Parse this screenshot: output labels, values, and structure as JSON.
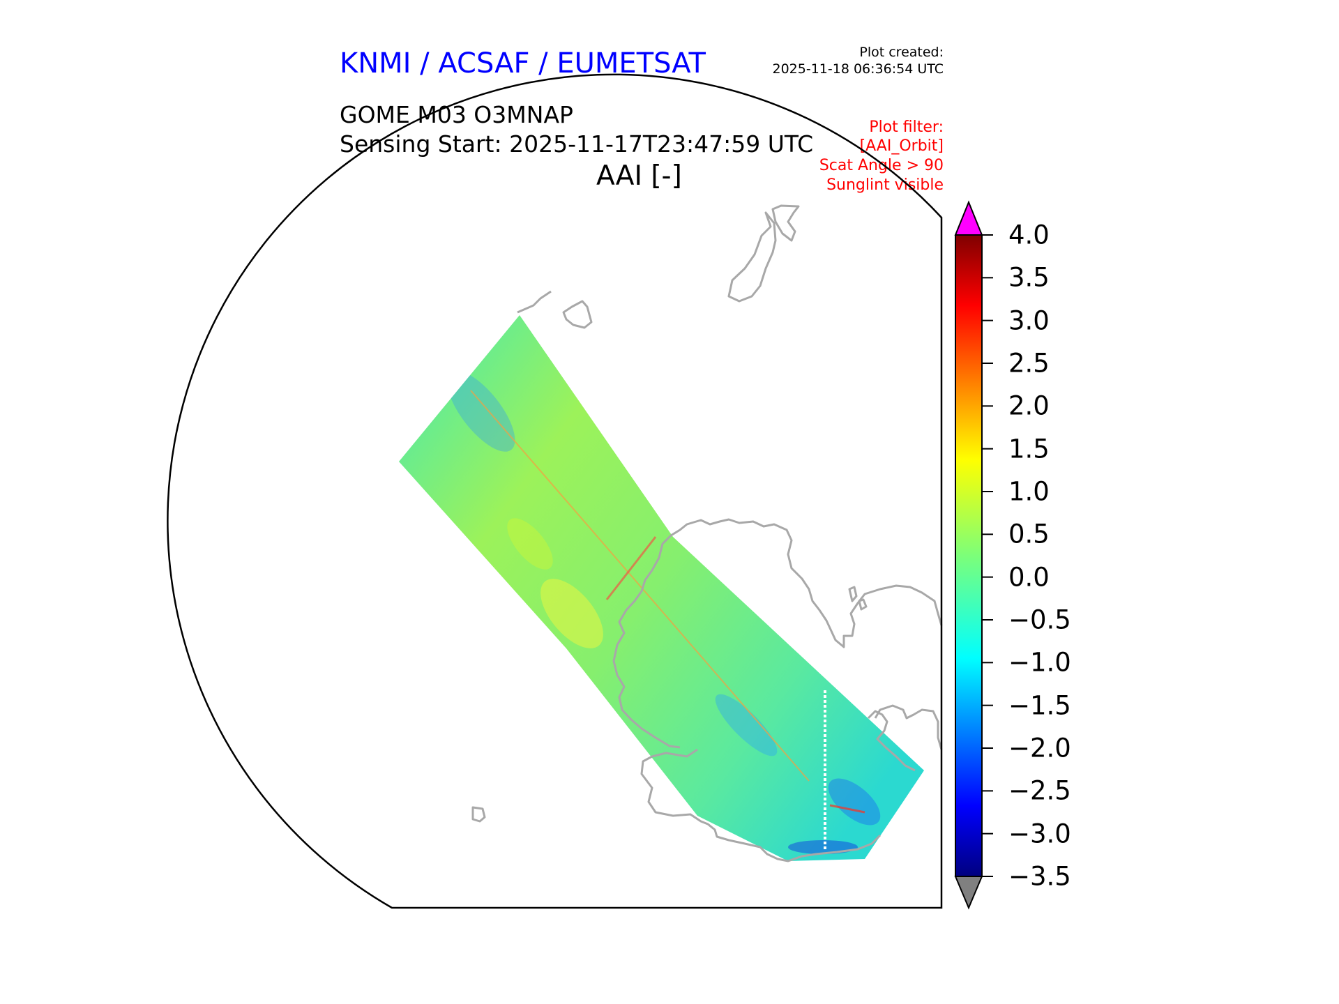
{
  "header": {
    "organization": "KNMI / ACSAF / EUMETSAT",
    "plot_created_label": "Plot created:",
    "plot_created_time": "2025-11-18 06:36:54 UTC",
    "product": "GOME M03 O3MNAP",
    "sensing_start": "Sensing Start: 2025-11-17T23:47:59 UTC",
    "variable": "AAI [-]"
  },
  "filters": [
    "Plot filter:",
    "[AAI_Orbit]",
    "Scat Angle > 90",
    "Sunglint visible"
  ],
  "colorbar": {
    "min": -3.5,
    "max": 4.0,
    "tick_labels": [
      "4.0",
      "3.5",
      "3.0",
      "2.5",
      "2.0",
      "1.5",
      "1.0",
      "0.5",
      "0.0",
      "−0.5",
      "−1.0",
      "−1.5",
      "−2.0",
      "−2.5",
      "−3.0",
      "−3.5"
    ],
    "extend_max_color": "#ff00ff",
    "extend_min_color": "#808080",
    "colormap": "jet"
  },
  "map": {
    "coastline_color": "#a8a8a8",
    "boundary_color": "#000000"
  }
}
